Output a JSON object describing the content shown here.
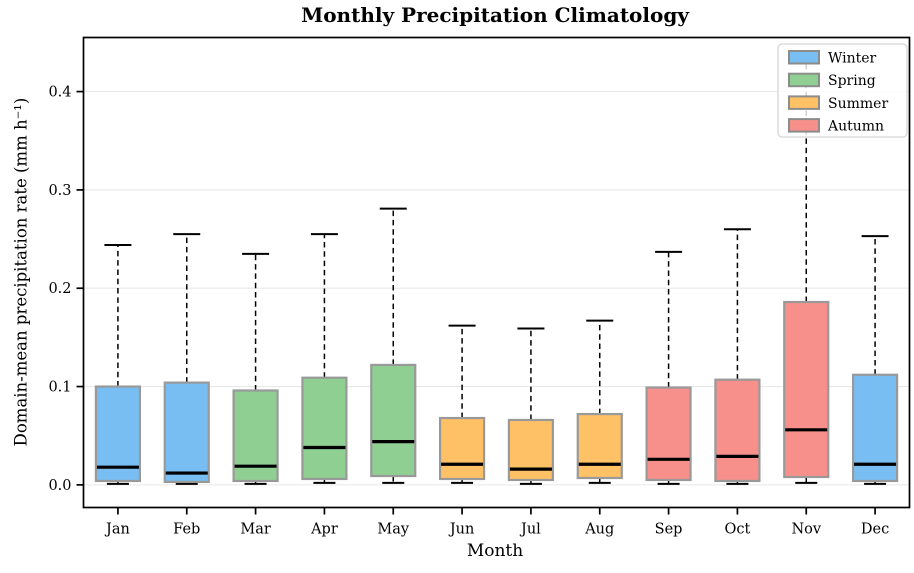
{
  "chart_data": {
    "type": "box",
    "title": "Monthly Precipitation Climatology",
    "xlabel": "Month",
    "ylabel": "Domain-mean precipitation rate (mm h⁻¹)",
    "ylim": [
      -0.023,
      0.455
    ],
    "yticks": [
      0.0,
      0.1,
      0.2,
      0.3,
      0.4
    ],
    "ytick_labels": [
      "0.0",
      "0.1",
      "0.2",
      "0.3",
      "0.4"
    ],
    "grid": true,
    "categories": [
      "Jan",
      "Feb",
      "Mar",
      "Apr",
      "May",
      "Jun",
      "Jul",
      "Aug",
      "Sep",
      "Oct",
      "Nov",
      "Dec"
    ],
    "legend": {
      "position": "upper right",
      "entries": [
        {
          "label": "Winter",
          "color": "#78BEF2"
        },
        {
          "label": "Spring",
          "color": "#8FCF92"
        },
        {
          "label": "Summer",
          "color": "#FFC166"
        },
        {
          "label": "Autumn",
          "color": "#F7908A"
        }
      ]
    },
    "boxes": [
      {
        "month": "Jan",
        "season": "Winter",
        "whisker_low": 0.001,
        "q1": 0.004,
        "median": 0.018,
        "q3": 0.1,
        "whisker_high": 0.244
      },
      {
        "month": "Feb",
        "season": "Winter",
        "whisker_low": 0.001,
        "q1": 0.003,
        "median": 0.012,
        "q3": 0.104,
        "whisker_high": 0.255
      },
      {
        "month": "Mar",
        "season": "Spring",
        "whisker_low": 0.001,
        "q1": 0.004,
        "median": 0.019,
        "q3": 0.096,
        "whisker_high": 0.235
      },
      {
        "month": "Apr",
        "season": "Spring",
        "whisker_low": 0.002,
        "q1": 0.006,
        "median": 0.038,
        "q3": 0.109,
        "whisker_high": 0.255
      },
      {
        "month": "May",
        "season": "Spring",
        "whisker_low": 0.002,
        "q1": 0.009,
        "median": 0.044,
        "q3": 0.122,
        "whisker_high": 0.281
      },
      {
        "month": "Jun",
        "season": "Summer",
        "whisker_low": 0.002,
        "q1": 0.006,
        "median": 0.021,
        "q3": 0.068,
        "whisker_high": 0.162
      },
      {
        "month": "Jul",
        "season": "Summer",
        "whisker_low": 0.001,
        "q1": 0.005,
        "median": 0.016,
        "q3": 0.066,
        "whisker_high": 0.159
      },
      {
        "month": "Aug",
        "season": "Summer",
        "whisker_low": 0.002,
        "q1": 0.007,
        "median": 0.021,
        "q3": 0.072,
        "whisker_high": 0.167
      },
      {
        "month": "Sep",
        "season": "Autumn",
        "whisker_low": 0.001,
        "q1": 0.005,
        "median": 0.026,
        "q3": 0.099,
        "whisker_high": 0.237
      },
      {
        "month": "Oct",
        "season": "Autumn",
        "whisker_low": 0.001,
        "q1": 0.004,
        "median": 0.029,
        "q3": 0.107,
        "whisker_high": 0.26
      },
      {
        "month": "Nov",
        "season": "Autumn",
        "whisker_low": 0.002,
        "q1": 0.008,
        "median": 0.056,
        "q3": 0.186,
        "whisker_high": 0.43
      },
      {
        "month": "Dec",
        "season": "Winter",
        "whisker_low": 0.001,
        "q1": 0.004,
        "median": 0.021,
        "q3": 0.112,
        "whisker_high": 0.253
      }
    ],
    "style_colors": {
      "box_edge": "#999999",
      "median": "#000000",
      "whisker": "#000000",
      "grid": "#E8E8E8",
      "spine": "#000000",
      "legend_border": "#D6D6D6"
    }
  }
}
